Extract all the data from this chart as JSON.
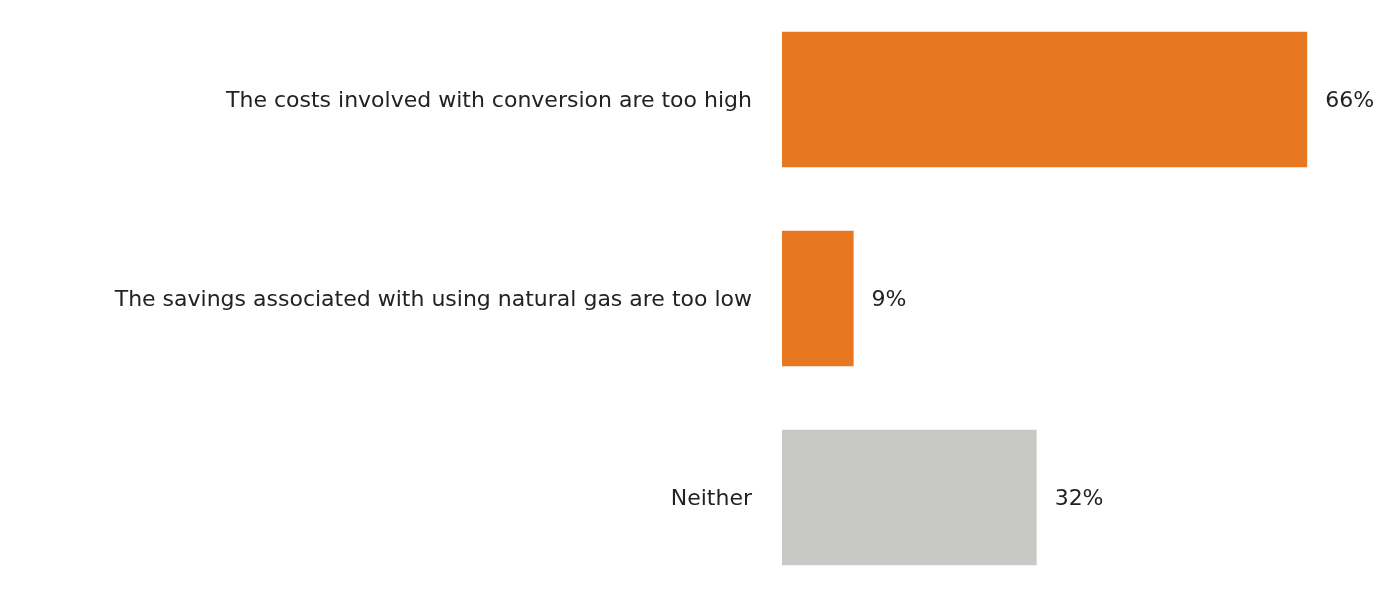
{
  "chart_data": {
    "type": "bar",
    "orientation": "horizontal",
    "categories": [
      "The costs involved with conversion are too high",
      "The savings associated with using natural gas are too low",
      "Neither"
    ],
    "values": [
      66,
      9,
      32
    ],
    "colors": [
      "#e87722",
      "#e87722",
      "#c8c8c6"
    ],
    "value_labels": [
      "66%",
      "9%",
      "32%"
    ],
    "tick_labels": "y"
  }
}
